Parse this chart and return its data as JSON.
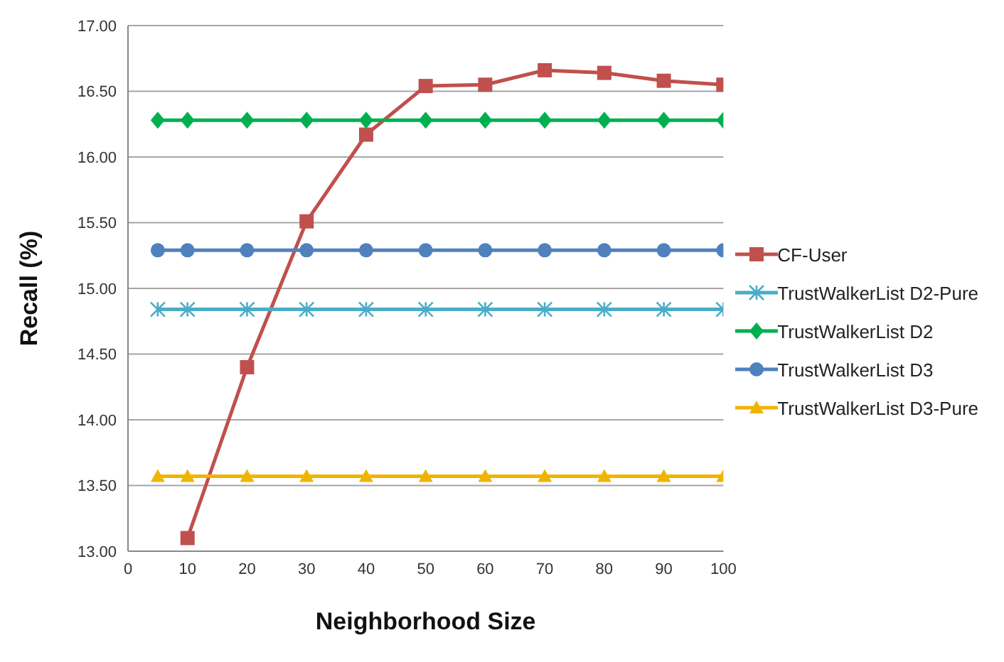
{
  "chart_data": {
    "type": "line",
    "xlabel": "Neighborhood Size",
    "ylabel": "Recall (%)",
    "x": [
      5,
      10,
      20,
      30,
      40,
      50,
      60,
      70,
      80,
      90,
      100
    ],
    "xlim": [
      0,
      100
    ],
    "xticks": [
      0,
      10,
      20,
      30,
      40,
      50,
      60,
      70,
      80,
      90,
      100
    ],
    "ylim": [
      13,
      17
    ],
    "yticks": [
      {
        "value": 13,
        "label": "13.00"
      },
      {
        "value": 13.5,
        "label": "13.50"
      },
      {
        "value": 14,
        "label": "14.00"
      },
      {
        "value": 14.5,
        "label": "14.50"
      },
      {
        "value": 15,
        "label": "15.00"
      },
      {
        "value": 15.5,
        "label": "15.50"
      },
      {
        "value": 16,
        "label": "16.00"
      },
      {
        "value": 16.5,
        "label": "16.50"
      },
      {
        "value": 17,
        "label": "17.00"
      }
    ],
    "grid": "y",
    "legend": "right",
    "line_style": "solid",
    "series": [
      {
        "name": "CF-User",
        "color": "#c0504d",
        "marker": "square",
        "values": [
          null,
          13.1,
          14.4,
          15.51,
          16.17,
          16.54,
          16.55,
          16.66,
          16.64,
          16.58,
          16.55
        ]
      },
      {
        "name": "TrustWalkerList D2-Pure",
        "color": "#4bacc6",
        "marker": "cross",
        "values": [
          14.84,
          14.84,
          14.84,
          14.84,
          14.84,
          14.84,
          14.84,
          14.84,
          14.84,
          14.84,
          14.84
        ]
      },
      {
        "name": "TrustWalkerList D2",
        "color": "#00b050",
        "marker": "diamond",
        "values": [
          16.28,
          16.28,
          16.28,
          16.28,
          16.28,
          16.28,
          16.28,
          16.28,
          16.28,
          16.28,
          16.28
        ]
      },
      {
        "name": "TrustWalkerList D3",
        "color": "#4f81bd",
        "marker": "circle",
        "values": [
          15.29,
          15.29,
          15.29,
          15.29,
          15.29,
          15.29,
          15.29,
          15.29,
          15.29,
          15.29,
          15.29
        ]
      },
      {
        "name": "TrustWalkerList D3-Pure",
        "color": "#f0b400",
        "marker": "triangle",
        "values": [
          13.57,
          13.57,
          13.57,
          13.57,
          13.57,
          13.57,
          13.57,
          13.57,
          13.57,
          13.57,
          13.57
        ]
      }
    ]
  }
}
